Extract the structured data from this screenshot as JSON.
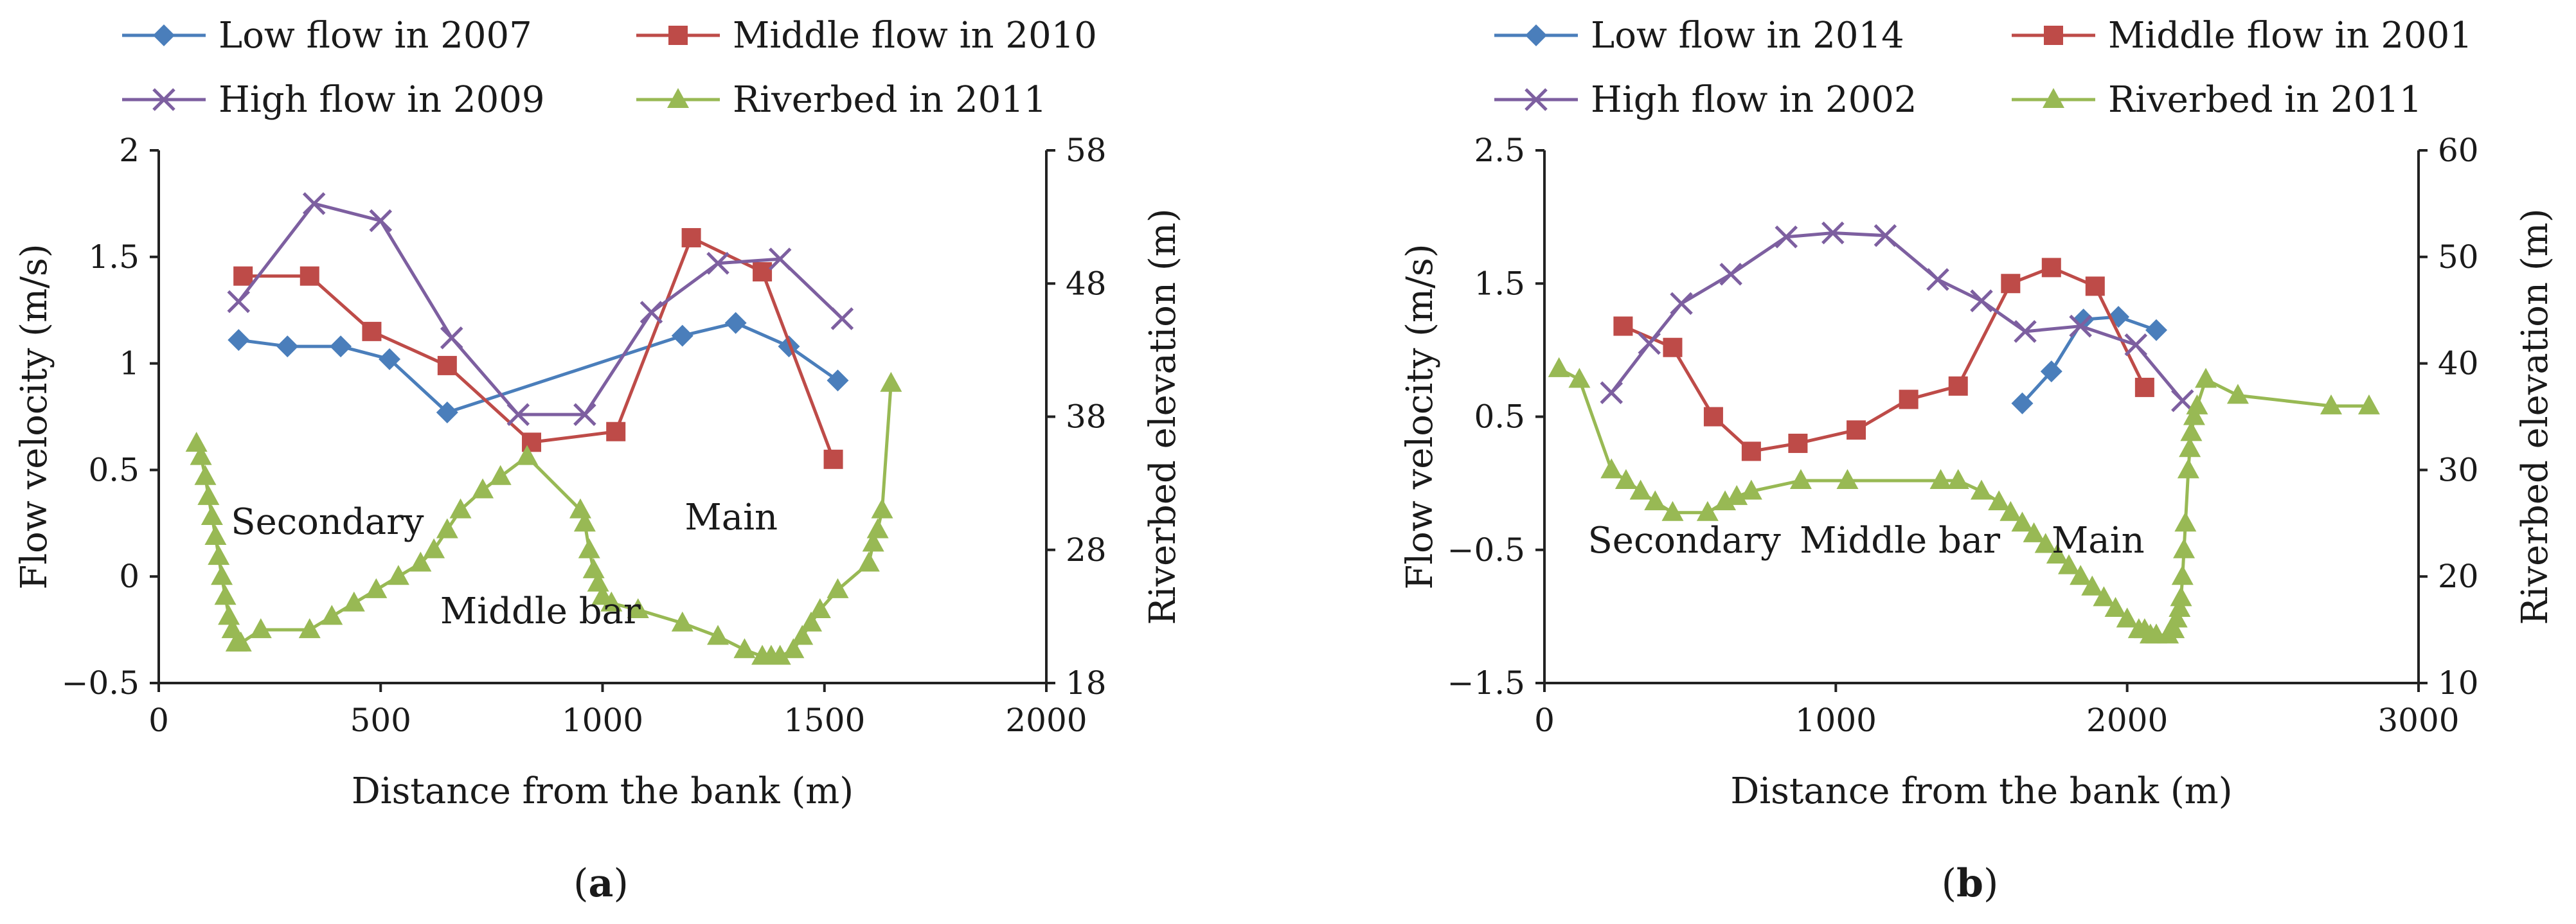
{
  "chart_data": [
    {
      "type": "line",
      "panel_label": "(a)",
      "xlabel": "Distance from the bank (m)",
      "ylabel": "Flow velocity (m/s)",
      "y2label": "Riverbed elevation (m)",
      "xlim": [
        0,
        2000
      ],
      "ylim": [
        -0.5,
        2
      ],
      "y2lim": [
        18,
        58
      ],
      "xticks": [
        0,
        500,
        1000,
        1500,
        2000
      ],
      "yticks": [
        -0.5,
        0,
        0.5,
        1,
        1.5,
        2
      ],
      "y2ticks": [
        18,
        28,
        38,
        48,
        58
      ],
      "xtick_labels": [
        "0",
        "500",
        "1000",
        "1500",
        "2000"
      ],
      "ytick_labels": [
        "−0.5",
        "0",
        "0.5",
        "1",
        "1.5",
        "2"
      ],
      "y2tick_labels": [
        "18",
        "28",
        "38",
        "48",
        "58"
      ],
      "legend_position": "top",
      "grid": false,
      "annotations": [
        {
          "text": "Secondary",
          "x": 380,
          "y": 0.2
        },
        {
          "text": "Main",
          "x": 1290,
          "y": 0.22
        },
        {
          "text": "Middle bar",
          "x": 860,
          "y": -0.22
        }
      ],
      "series": [
        {
          "name": "Low flow in 2007",
          "axis": "left",
          "marker": "diamond",
          "color": "#4a7ebb",
          "x": [
            180,
            290,
            410,
            520,
            650,
            1180,
            1300,
            1420,
            1530
          ],
          "y": [
            1.11,
            1.08,
            1.08,
            1.02,
            0.77,
            1.13,
            1.19,
            1.08,
            0.92
          ]
        },
        {
          "name": "Middle flow in 2010",
          "axis": "left",
          "marker": "square",
          "color": "#be4b48",
          "x": [
            190,
            340,
            480,
            650,
            840,
            1030,
            1200,
            1360,
            1520
          ],
          "y": [
            1.41,
            1.41,
            1.15,
            0.99,
            0.63,
            0.68,
            1.59,
            1.43,
            0.55
          ]
        },
        {
          "name": "High flow in 2009",
          "axis": "left",
          "marker": "x",
          "color": "#7d5fa0",
          "x": [
            180,
            350,
            500,
            660,
            810,
            960,
            1110,
            1260,
            1400,
            1540
          ],
          "y": [
            1.29,
            1.75,
            1.67,
            1.12,
            0.76,
            0.76,
            1.24,
            1.47,
            1.49,
            1.21
          ]
        },
        {
          "name": "Riverbed in 2011",
          "axis": "right",
          "marker": "triangle",
          "color": "#98b954",
          "x": [
            85,
            95,
            105,
            112,
            120,
            128,
            135,
            142,
            150,
            158,
            166,
            175,
            185,
            230,
            340,
            390,
            440,
            490,
            540,
            590,
            620,
            650,
            680,
            730,
            770,
            830,
            950,
            960,
            970,
            980,
            990,
            1000,
            1020,
            1080,
            1180,
            1260,
            1320,
            1360,
            1380,
            1400,
            1430,
            1450,
            1470,
            1490,
            1530,
            1600,
            1610,
            1620,
            1630,
            1650
          ],
          "y": [
            36,
            35,
            33.5,
            32,
            30.5,
            29,
            27.5,
            26,
            24.5,
            23,
            22,
            21,
            21,
            22,
            22,
            23,
            24,
            25,
            26,
            27,
            28,
            29.5,
            31,
            32.5,
            33.5,
            35,
            31,
            30,
            28,
            26.5,
            25.5,
            24.5,
            24,
            23.5,
            22.5,
            21.5,
            20.5,
            20,
            20,
            20,
            20.5,
            21.5,
            22.5,
            23.5,
            25,
            27,
            28.5,
            29.5,
            31,
            40.5
          ]
        }
      ]
    },
    {
      "type": "line",
      "panel_label": "(b)",
      "xlabel": "Distance from the bank (m)",
      "ylabel": "Flow velocity (m/s)",
      "y2label": "Riverbed elevation (m)",
      "xlim": [
        0,
        3000
      ],
      "ylim": [
        -1.5,
        2.5
      ],
      "y2lim": [
        10,
        60
      ],
      "xticks": [
        0,
        1000,
        2000,
        3000
      ],
      "yticks": [
        -1.5,
        -0.5,
        0.5,
        1.5,
        2.5
      ],
      "y2ticks": [
        10,
        20,
        30,
        40,
        50,
        60
      ],
      "xtick_labels": [
        "0",
        "1000",
        "2000",
        "3000"
      ],
      "ytick_labels": [
        "−1.5",
        "−0.5",
        "0.5",
        "1.5",
        "2.5"
      ],
      "y2tick_labels": [
        "10",
        "20",
        "30",
        "40",
        "50",
        "60"
      ],
      "legend_position": "top",
      "grid": false,
      "annotations": [
        {
          "text": "Secondary",
          "x": 480,
          "y": -0.52
        },
        {
          "text": "Middle bar",
          "x": 1220,
          "y": -0.52
        },
        {
          "text": "Main",
          "x": 1900,
          "y": -0.52
        }
      ],
      "series": [
        {
          "name": "Low flow in 2014",
          "axis": "left",
          "marker": "diamond",
          "color": "#4a7ebb",
          "x": [
            1640,
            1740,
            1850,
            1970,
            2100
          ],
          "y": [
            0.6,
            0.84,
            1.23,
            1.25,
            1.15
          ]
        },
        {
          "name": "Middle flow in 2001",
          "axis": "left",
          "marker": "square",
          "color": "#be4b48",
          "x": [
            270,
            440,
            580,
            710,
            870,
            1070,
            1250,
            1420,
            1600,
            1740,
            1890,
            2060
          ],
          "y": [
            1.18,
            1.02,
            0.5,
            0.24,
            0.3,
            0.4,
            0.63,
            0.73,
            1.5,
            1.62,
            1.48,
            0.72
          ]
        },
        {
          "name": "High flow in 2002",
          "axis": "left",
          "marker": "x",
          "color": "#7d5fa0",
          "x": [
            230,
            360,
            470,
            640,
            830,
            990,
            1170,
            1350,
            1500,
            1650,
            1840,
            2030,
            2190
          ],
          "y": [
            0.68,
            1.05,
            1.35,
            1.57,
            1.85,
            1.88,
            1.86,
            1.53,
            1.37,
            1.14,
            1.18,
            1.04,
            0.62
          ]
        },
        {
          "name": "Riverbed in 2011",
          "axis": "right",
          "marker": "triangle",
          "color": "#98b954",
          "x": [
            50,
            120,
            230,
            280,
            330,
            380,
            440,
            560,
            620,
            660,
            710,
            880,
            1040,
            1360,
            1420,
            1500,
            1560,
            1600,
            1640,
            1680,
            1720,
            1760,
            1800,
            1840,
            1880,
            1920,
            1960,
            2000,
            2040,
            2060,
            2080,
            2100,
            2140,
            2160,
            2170,
            2180,
            2185,
            2190,
            2195,
            2200,
            2210,
            2215,
            2220,
            2230,
            2240,
            2270,
            2380,
            2700,
            2830
          ],
          "y": [
            39.5,
            38.5,
            30,
            29,
            28,
            27,
            26,
            26,
            27,
            27.5,
            28,
            29,
            29,
            29,
            29,
            28,
            27,
            26,
            25,
            24,
            23,
            22,
            21,
            20,
            19,
            18,
            17,
            16,
            15,
            15,
            14.5,
            14.5,
            14.5,
            15,
            16,
            17,
            18,
            20,
            22.5,
            25,
            30,
            32,
            33.5,
            35,
            36,
            38.5,
            37,
            36,
            36
          ]
        }
      ]
    }
  ]
}
